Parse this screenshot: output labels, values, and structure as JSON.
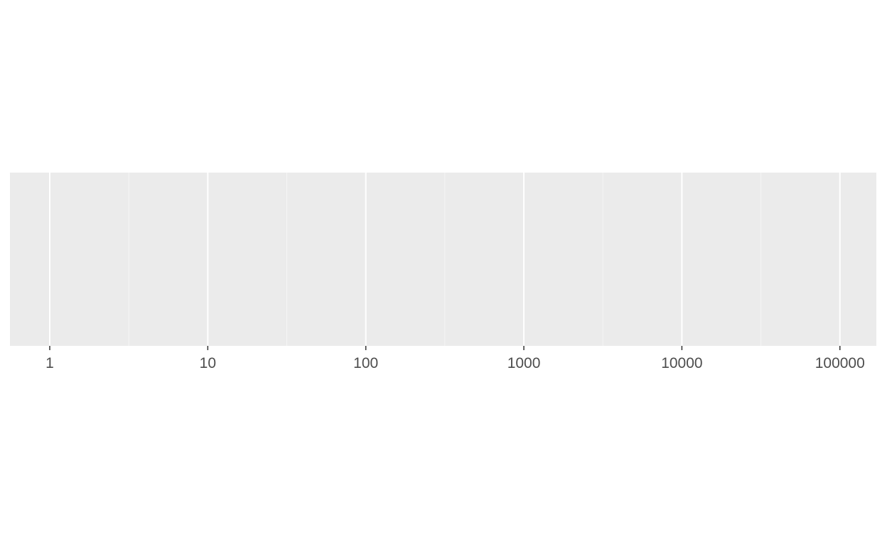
{
  "chart_data": {
    "type": "scatter",
    "title": "",
    "xlabel": "",
    "ylabel": "",
    "x_scale": "log10",
    "xlim": [
      0.56,
      170000
    ],
    "x_ticks": [
      1,
      10,
      100,
      1000,
      10000,
      100000
    ],
    "x_tick_labels": [
      "1",
      "10",
      "100",
      "1000",
      "10000",
      "100000"
    ],
    "x_minor_gridlines": [
      3.1623,
      31.623,
      316.23,
      3162.3,
      31623
    ],
    "y_ticks": [],
    "grid": true,
    "series": [],
    "colors": {
      "panel_background": "#ebebeb",
      "grid_major": "#ffffff",
      "grid_minor": "#f5f5f5",
      "tick_mark": "#333333",
      "tick_label": "#4d4d4d"
    }
  }
}
